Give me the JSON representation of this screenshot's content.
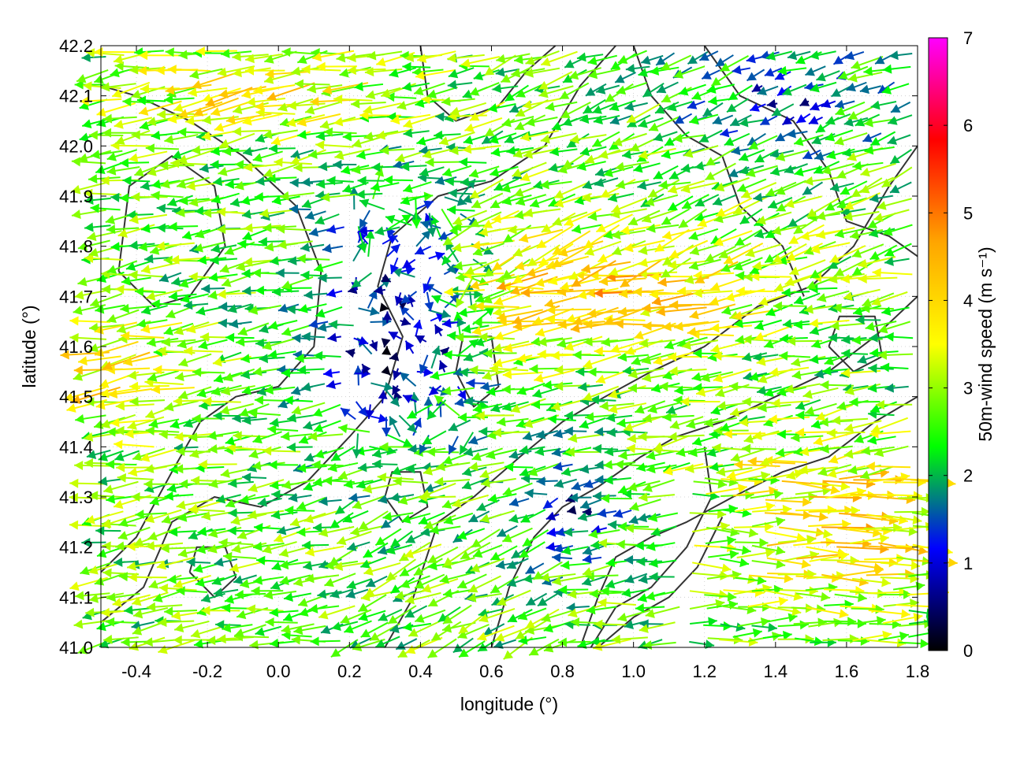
{
  "chart_data": {
    "type": "vector-field",
    "xlabel": "longitude (°)",
    "ylabel": "latitude (°)",
    "xlim": [
      -0.5,
      1.8
    ],
    "ylim": [
      41.0,
      42.2
    ],
    "x_ticks": [
      "-0.4",
      "-0.2",
      "0.0",
      "0.2",
      "0.4",
      "0.6",
      "0.8",
      "1.0",
      "1.2",
      "1.4",
      "1.6",
      "1.8"
    ],
    "x_tick_values": [
      -0.4,
      -0.2,
      0.0,
      0.2,
      0.4,
      0.6,
      0.8,
      1.0,
      1.2,
      1.4,
      1.6,
      1.8
    ],
    "y_ticks": [
      "41.0",
      "41.1",
      "41.2",
      "41.3",
      "41.4",
      "41.5",
      "41.6",
      "41.7",
      "41.8",
      "41.9",
      "42.0",
      "42.1",
      "42.2"
    ],
    "y_tick_values": [
      41.0,
      41.1,
      41.2,
      41.3,
      41.4,
      41.5,
      41.6,
      41.7,
      41.8,
      41.9,
      42.0,
      42.1,
      42.2
    ],
    "grid": true,
    "colorbar": {
      "label": "50m-wind speed (m s⁻¹)",
      "range": [
        0,
        7
      ],
      "ticks": [
        "0",
        "1",
        "2",
        "3",
        "4",
        "5",
        "6",
        "7"
      ],
      "tick_values": [
        0,
        1,
        2,
        3,
        4,
        5,
        6,
        7
      ],
      "colors": [
        "#000000",
        "#0000ff",
        "#00ff00",
        "#ffff00",
        "#ffa500",
        "#ff0000",
        "#ff00ff"
      ]
    },
    "contours": [
      {
        "points": [
          [
            -0.5,
            41.05
          ],
          [
            -0.38,
            41.12
          ],
          [
            -0.3,
            41.25
          ],
          [
            -0.18,
            41.3
          ],
          [
            -0.05,
            41.28
          ],
          [
            0.08,
            41.33
          ],
          [
            0.2,
            41.42
          ],
          [
            0.3,
            41.5
          ],
          [
            0.35,
            41.62
          ],
          [
            0.28,
            41.72
          ],
          [
            0.32,
            41.82
          ],
          [
            0.45,
            41.9
          ],
          [
            0.6,
            41.93
          ],
          [
            0.75,
            42.0
          ],
          [
            0.85,
            42.12
          ],
          [
            0.95,
            42.2
          ]
        ]
      },
      {
        "points": [
          [
            -0.5,
            41.15
          ],
          [
            -0.4,
            41.22
          ],
          [
            -0.3,
            41.35
          ],
          [
            -0.22,
            41.45
          ],
          [
            -0.12,
            41.5
          ],
          [
            0.0,
            41.52
          ],
          [
            0.1,
            41.6
          ],
          [
            0.12,
            41.75
          ],
          [
            0.05,
            41.88
          ],
          [
            -0.1,
            41.98
          ],
          [
            -0.25,
            42.05
          ],
          [
            -0.4,
            42.1
          ],
          [
            -0.5,
            42.12
          ]
        ]
      },
      {
        "points": [
          [
            -0.45,
            41.75
          ],
          [
            -0.35,
            41.68
          ],
          [
            -0.25,
            41.7
          ],
          [
            -0.15,
            41.8
          ],
          [
            -0.18,
            41.92
          ],
          [
            -0.3,
            41.98
          ],
          [
            -0.42,
            41.92
          ],
          [
            -0.45,
            41.75
          ]
        ]
      },
      {
        "points": [
          [
            0.3,
            41.0
          ],
          [
            0.38,
            41.1
          ],
          [
            0.45,
            41.25
          ],
          [
            0.55,
            41.3
          ],
          [
            0.68,
            41.38
          ],
          [
            0.8,
            41.45
          ],
          [
            0.92,
            41.5
          ],
          [
            1.05,
            41.55
          ],
          [
            1.2,
            41.6
          ],
          [
            1.35,
            41.68
          ],
          [
            1.5,
            41.72
          ],
          [
            1.62,
            41.8
          ],
          [
            1.72,
            41.92
          ],
          [
            1.8,
            42.0
          ]
        ]
      },
      {
        "points": [
          [
            0.6,
            41.0
          ],
          [
            0.65,
            41.12
          ],
          [
            0.72,
            41.22
          ],
          [
            0.8,
            41.28
          ],
          [
            0.9,
            41.32
          ],
          [
            1.02,
            41.38
          ],
          [
            1.12,
            41.42
          ],
          [
            1.25,
            41.45
          ],
          [
            1.4,
            41.5
          ],
          [
            1.55,
            41.55
          ],
          [
            1.68,
            41.62
          ],
          [
            1.8,
            41.7
          ]
        ]
      },
      {
        "points": [
          [
            0.85,
            41.0
          ],
          [
            0.9,
            41.1
          ],
          [
            0.95,
            41.18
          ],
          [
            1.05,
            41.22
          ],
          [
            1.15,
            41.25
          ],
          [
            1.28,
            41.3
          ],
          [
            1.42,
            41.35
          ],
          [
            1.55,
            41.38
          ],
          [
            1.68,
            41.45
          ],
          [
            1.8,
            41.5
          ]
        ]
      },
      {
        "points": [
          [
            0.88,
            41.0
          ],
          [
            0.95,
            41.08
          ],
          [
            1.05,
            41.12
          ],
          [
            1.15,
            41.2
          ],
          [
            1.22,
            41.3
          ],
          [
            1.2,
            41.4
          ]
        ]
      },
      {
        "points": [
          [
            0.9,
            41.0
          ],
          [
            1.0,
            41.06
          ],
          [
            1.1,
            41.1
          ],
          [
            1.18,
            41.16
          ],
          [
            1.25,
            41.26
          ]
        ]
      },
      {
        "points": [
          [
            1.2,
            42.2
          ],
          [
            1.3,
            42.1
          ],
          [
            1.45,
            42.05
          ],
          [
            1.55,
            41.95
          ],
          [
            1.6,
            41.85
          ],
          [
            1.72,
            41.82
          ],
          [
            1.8,
            41.78
          ]
        ]
      },
      {
        "points": [
          [
            1.0,
            42.2
          ],
          [
            1.05,
            42.1
          ],
          [
            1.15,
            42.02
          ],
          [
            1.25,
            41.98
          ],
          [
            1.3,
            41.88
          ],
          [
            1.42,
            41.8
          ],
          [
            1.48,
            41.7
          ]
        ]
      },
      {
        "points": [
          [
            0.4,
            42.2
          ],
          [
            0.42,
            42.1
          ],
          [
            0.5,
            42.05
          ],
          [
            0.62,
            42.08
          ],
          [
            0.7,
            42.15
          ],
          [
            0.78,
            42.2
          ]
        ]
      },
      {
        "points": [
          [
            0.5,
            41.55
          ],
          [
            0.55,
            41.48
          ],
          [
            0.62,
            41.52
          ],
          [
            0.6,
            41.62
          ],
          [
            0.52,
            41.62
          ],
          [
            0.5,
            41.55
          ]
        ]
      },
      {
        "points": [
          [
            1.55,
            41.6
          ],
          [
            1.62,
            41.55
          ],
          [
            1.7,
            41.58
          ],
          [
            1.68,
            41.66
          ],
          [
            1.58,
            41.66
          ],
          [
            1.55,
            41.6
          ]
        ]
      },
      {
        "points": [
          [
            0.3,
            41.3
          ],
          [
            0.35,
            41.25
          ],
          [
            0.42,
            41.28
          ],
          [
            0.4,
            41.35
          ],
          [
            0.32,
            41.35
          ],
          [
            0.3,
            41.3
          ]
        ]
      },
      {
        "points": [
          [
            -0.25,
            41.15
          ],
          [
            -0.18,
            41.1
          ],
          [
            -0.12,
            41.14
          ],
          [
            -0.15,
            41.2
          ],
          [
            -0.23,
            41.2
          ],
          [
            -0.25,
            41.15
          ]
        ]
      }
    ]
  }
}
